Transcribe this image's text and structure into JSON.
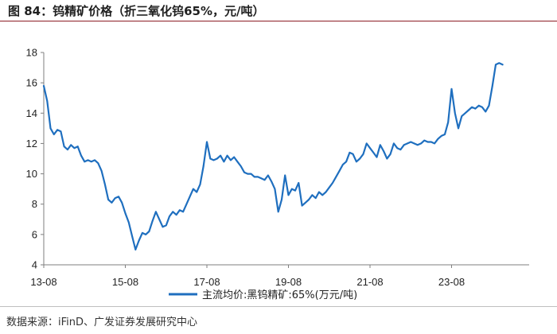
{
  "figure": {
    "title": "图  84：钨精矿价格（折三氧化钨65%，元/吨）",
    "source": "数据来源：iFinD、广发证券发展研究中心"
  },
  "colors": {
    "series": "#1f6fbf",
    "axis": "#7f7f7f",
    "title_rule": "#8c1c24"
  },
  "chart_data": {
    "type": "line",
    "title": "",
    "xlabel": "",
    "ylabel": "",
    "x_ticks": [
      "13-08",
      "15-08",
      "17-08",
      "19-08",
      "21-08",
      "23-08"
    ],
    "x_range": [
      "2013-08",
      "2024-11"
    ],
    "ylim": [
      4,
      18
    ],
    "y_ticks": [
      "4",
      "6",
      "8",
      "10",
      "12",
      "14",
      "16",
      "18"
    ],
    "grid": false,
    "legend_position": "bottom",
    "series": [
      {
        "name": "主流均价:黑钨精矿:65%(万元/吨)",
        "points": [
          [
            "2013-08",
            15.8
          ],
          [
            "2013-09",
            14.8
          ],
          [
            "2013-10",
            13.0
          ],
          [
            "2013-11",
            12.6
          ],
          [
            "2013-12",
            12.9
          ],
          [
            "2014-01",
            12.8
          ],
          [
            "2014-02",
            11.8
          ],
          [
            "2014-03",
            11.6
          ],
          [
            "2014-04",
            11.9
          ],
          [
            "2014-05",
            11.7
          ],
          [
            "2014-06",
            11.8
          ],
          [
            "2014-07",
            11.2
          ],
          [
            "2014-08",
            10.8
          ],
          [
            "2014-09",
            10.9
          ],
          [
            "2014-10",
            10.8
          ],
          [
            "2014-11",
            10.9
          ],
          [
            "2014-12",
            10.7
          ],
          [
            "2015-01",
            10.2
          ],
          [
            "2015-02",
            9.3
          ],
          [
            "2015-03",
            8.3
          ],
          [
            "2015-04",
            8.1
          ],
          [
            "2015-05",
            8.4
          ],
          [
            "2015-06",
            8.5
          ],
          [
            "2015-07",
            8.1
          ],
          [
            "2015-08",
            7.4
          ],
          [
            "2015-09",
            6.8
          ],
          [
            "2015-10",
            5.9
          ],
          [
            "2015-11",
            5.0
          ],
          [
            "2015-12",
            5.6
          ],
          [
            "2016-01",
            6.1
          ],
          [
            "2016-02",
            6.0
          ],
          [
            "2016-03",
            6.2
          ],
          [
            "2016-04",
            6.9
          ],
          [
            "2016-05",
            7.5
          ],
          [
            "2016-06",
            7.0
          ],
          [
            "2016-07",
            6.5
          ],
          [
            "2016-08",
            6.6
          ],
          [
            "2016-09",
            7.2
          ],
          [
            "2016-10",
            7.5
          ],
          [
            "2016-11",
            7.3
          ],
          [
            "2016-12",
            7.6
          ],
          [
            "2017-01",
            7.5
          ],
          [
            "2017-02",
            8.0
          ],
          [
            "2017-03",
            8.5
          ],
          [
            "2017-04",
            9.0
          ],
          [
            "2017-05",
            8.8
          ],
          [
            "2017-06",
            9.3
          ],
          [
            "2017-07",
            10.5
          ],
          [
            "2017-08",
            12.1
          ],
          [
            "2017-09",
            11.0
          ],
          [
            "2017-10",
            10.9
          ],
          [
            "2017-11",
            11.0
          ],
          [
            "2017-12",
            11.2
          ],
          [
            "2018-01",
            10.8
          ],
          [
            "2018-02",
            11.2
          ],
          [
            "2018-03",
            10.9
          ],
          [
            "2018-04",
            11.1
          ],
          [
            "2018-05",
            10.8
          ],
          [
            "2018-06",
            10.5
          ],
          [
            "2018-07",
            10.1
          ],
          [
            "2018-08",
            10.0
          ],
          [
            "2018-09",
            10.0
          ],
          [
            "2018-10",
            9.8
          ],
          [
            "2018-11",
            9.8
          ],
          [
            "2018-12",
            9.7
          ],
          [
            "2019-01",
            9.6
          ],
          [
            "2019-02",
            9.9
          ],
          [
            "2019-03",
            9.5
          ],
          [
            "2019-04",
            9.0
          ],
          [
            "2019-05",
            7.5
          ],
          [
            "2019-06",
            8.3
          ],
          [
            "2019-07",
            9.9
          ],
          [
            "2019-08",
            8.6
          ],
          [
            "2019-09",
            9.0
          ],
          [
            "2019-10",
            8.9
          ],
          [
            "2019-11",
            9.4
          ],
          [
            "2019-12",
            7.9
          ],
          [
            "2020-01",
            8.1
          ],
          [
            "2020-02",
            8.3
          ],
          [
            "2020-03",
            8.6
          ],
          [
            "2020-04",
            8.4
          ],
          [
            "2020-05",
            8.8
          ],
          [
            "2020-06",
            8.6
          ],
          [
            "2020-07",
            8.8
          ],
          [
            "2020-08",
            9.1
          ],
          [
            "2020-09",
            9.4
          ],
          [
            "2020-10",
            9.8
          ],
          [
            "2020-11",
            10.2
          ],
          [
            "2020-12",
            10.6
          ],
          [
            "2021-01",
            10.8
          ],
          [
            "2021-02",
            11.4
          ],
          [
            "2021-03",
            11.3
          ],
          [
            "2021-04",
            10.8
          ],
          [
            "2021-05",
            11.0
          ],
          [
            "2021-06",
            11.3
          ],
          [
            "2021-07",
            12.0
          ],
          [
            "2021-08",
            11.7
          ],
          [
            "2021-09",
            11.4
          ],
          [
            "2021-10",
            11.1
          ],
          [
            "2021-11",
            11.9
          ],
          [
            "2021-12",
            11.5
          ],
          [
            "2022-01",
            11.0
          ],
          [
            "2022-02",
            11.3
          ],
          [
            "2022-03",
            12.0
          ],
          [
            "2022-04",
            11.7
          ],
          [
            "2022-05",
            11.6
          ],
          [
            "2022-06",
            11.9
          ],
          [
            "2022-07",
            12.0
          ],
          [
            "2022-08",
            12.1
          ],
          [
            "2022-09",
            12.0
          ],
          [
            "2022-10",
            11.9
          ],
          [
            "2022-11",
            12.0
          ],
          [
            "2022-12",
            12.2
          ],
          [
            "2023-01",
            12.1
          ],
          [
            "2023-02",
            12.1
          ],
          [
            "2023-03",
            12.0
          ],
          [
            "2023-04",
            12.3
          ],
          [
            "2023-05",
            12.5
          ],
          [
            "2023-06",
            12.6
          ],
          [
            "2023-07",
            13.4
          ],
          [
            "2023-08",
            15.6
          ],
          [
            "2023-09",
            14.0
          ],
          [
            "2023-10",
            13.0
          ],
          [
            "2023-11",
            13.8
          ],
          [
            "2023-12",
            14.0
          ],
          [
            "2024-01",
            14.2
          ],
          [
            "2024-02",
            14.4
          ],
          [
            "2024-03",
            14.3
          ],
          [
            "2024-04",
            14.5
          ],
          [
            "2024-05",
            14.4
          ],
          [
            "2024-06",
            14.1
          ],
          [
            "2024-07",
            14.5
          ],
          [
            "2024-08",
            15.8
          ],
          [
            "2024-09",
            17.2
          ],
          [
            "2024-10",
            17.3
          ],
          [
            "2024-11",
            17.2
          ]
        ]
      }
    ]
  }
}
